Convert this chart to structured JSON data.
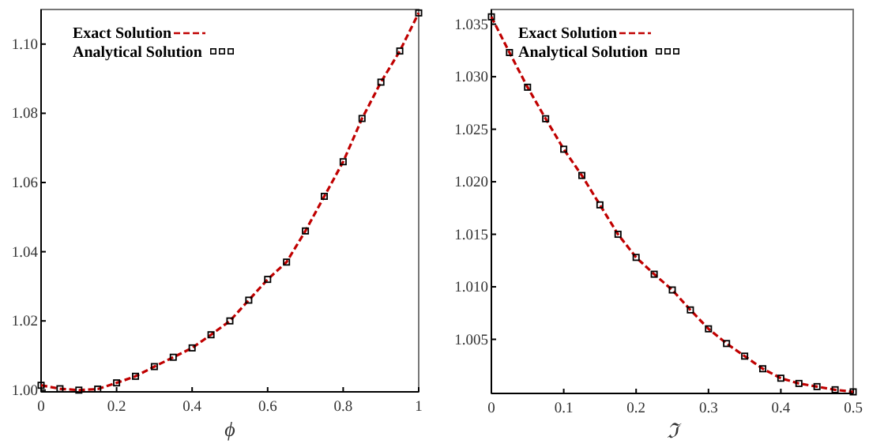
{
  "chart_data": [
    {
      "type": "line",
      "xlabel": "ϕ",
      "x": [
        0,
        0.05,
        0.1,
        0.15,
        0.2,
        0.25,
        0.3,
        0.35,
        0.4,
        0.45,
        0.5,
        0.55,
        0.6,
        0.65,
        0.7,
        0.75,
        0.8,
        0.85,
        0.9,
        0.95,
        1
      ],
      "series": [
        {
          "name": "Exact Solution",
          "color": "#c00000",
          "line_style": "dashed",
          "values": [
            1.0014,
            1.0004,
            1.0,
            1.0003,
            1.0021,
            1.004,
            1.0068,
            1.0095,
            1.0122,
            1.016,
            1.02,
            1.026,
            1.032,
            1.037,
            1.046,
            1.056,
            1.066,
            1.0785,
            1.089,
            1.098,
            1.109
          ]
        },
        {
          "name": "Analytical Solution",
          "type": "scatter",
          "color": "#000000",
          "marker": "square",
          "values": [
            1.0014,
            1.0004,
            1.0,
            1.0003,
            1.0021,
            1.004,
            1.0068,
            1.0095,
            1.0122,
            1.016,
            1.02,
            1.026,
            1.032,
            1.037,
            1.046,
            1.056,
            1.066,
            1.0785,
            1.089,
            1.098,
            1.109
          ]
        }
      ],
      "xlim": [
        0,
        1
      ],
      "xticks": [
        0,
        0.2,
        0.4,
        0.6,
        0.8,
        1
      ],
      "ylim": [
        0.9995,
        1.11
      ],
      "yticks": [
        {
          "value": 1,
          "label": "1.00"
        },
        {
          "value": 1.02,
          "label": "1.02"
        },
        {
          "value": 1.04,
          "label": "1.04"
        },
        {
          "value": 1.06,
          "label": "1.06"
        },
        {
          "value": 1.08,
          "label": "1.08"
        },
        {
          "value": 1.1,
          "label": "1.10"
        }
      ],
      "grid": false,
      "legend": "top left"
    },
    {
      "type": "line",
      "xlabel": "ℑ",
      "x": [
        0,
        0.025,
        0.05,
        0.075,
        0.1,
        0.125,
        0.15,
        0.175,
        0.2,
        0.225,
        0.25,
        0.275,
        0.3,
        0.325,
        0.35,
        0.375,
        0.4,
        0.425,
        0.45,
        0.475,
        0.5
      ],
      "series": [
        {
          "name": "Exact Solution",
          "color": "#c00000",
          "line_style": "dashed",
          "values": [
            1.0357,
            1.0323,
            1.029,
            1.026,
            1.0231,
            1.0206,
            1.0178,
            1.015,
            1.0128,
            1.0112,
            1.0097,
            1.0078,
            1.006,
            1.0046,
            1.0034,
            1.0022,
            1.0013,
            1.0008,
            1.0005,
            1.0002,
            1.0
          ]
        },
        {
          "name": "Analytical Solution",
          "type": "scatter",
          "color": "#000000",
          "marker": "square",
          "values": [
            1.0357,
            1.0323,
            1.029,
            1.026,
            1.0231,
            1.0206,
            1.0178,
            1.015,
            1.0128,
            1.0112,
            1.0097,
            1.0078,
            1.006,
            1.0046,
            1.0034,
            1.0022,
            1.0013,
            1.0008,
            1.0005,
            1.0002,
            1.0
          ]
        }
      ],
      "xlim": [
        0,
        0.5
      ],
      "xticks": [
        0,
        0.1,
        0.2,
        0.3,
        0.4,
        0.5
      ],
      "ylim": [
        0.99985,
        1.0364
      ],
      "yticks": [
        {
          "value": 1.005,
          "label": "1.005"
        },
        {
          "value": 1.01,
          "label": "1.010"
        },
        {
          "value": 1.015,
          "label": "1.015"
        },
        {
          "value": 1.02,
          "label": "1.020"
        },
        {
          "value": 1.025,
          "label": "1.025"
        },
        {
          "value": 1.03,
          "label": "1.030"
        },
        {
          "value": 1.035,
          "label": "1.035"
        }
      ],
      "grid": false,
      "legend": "top left"
    }
  ]
}
